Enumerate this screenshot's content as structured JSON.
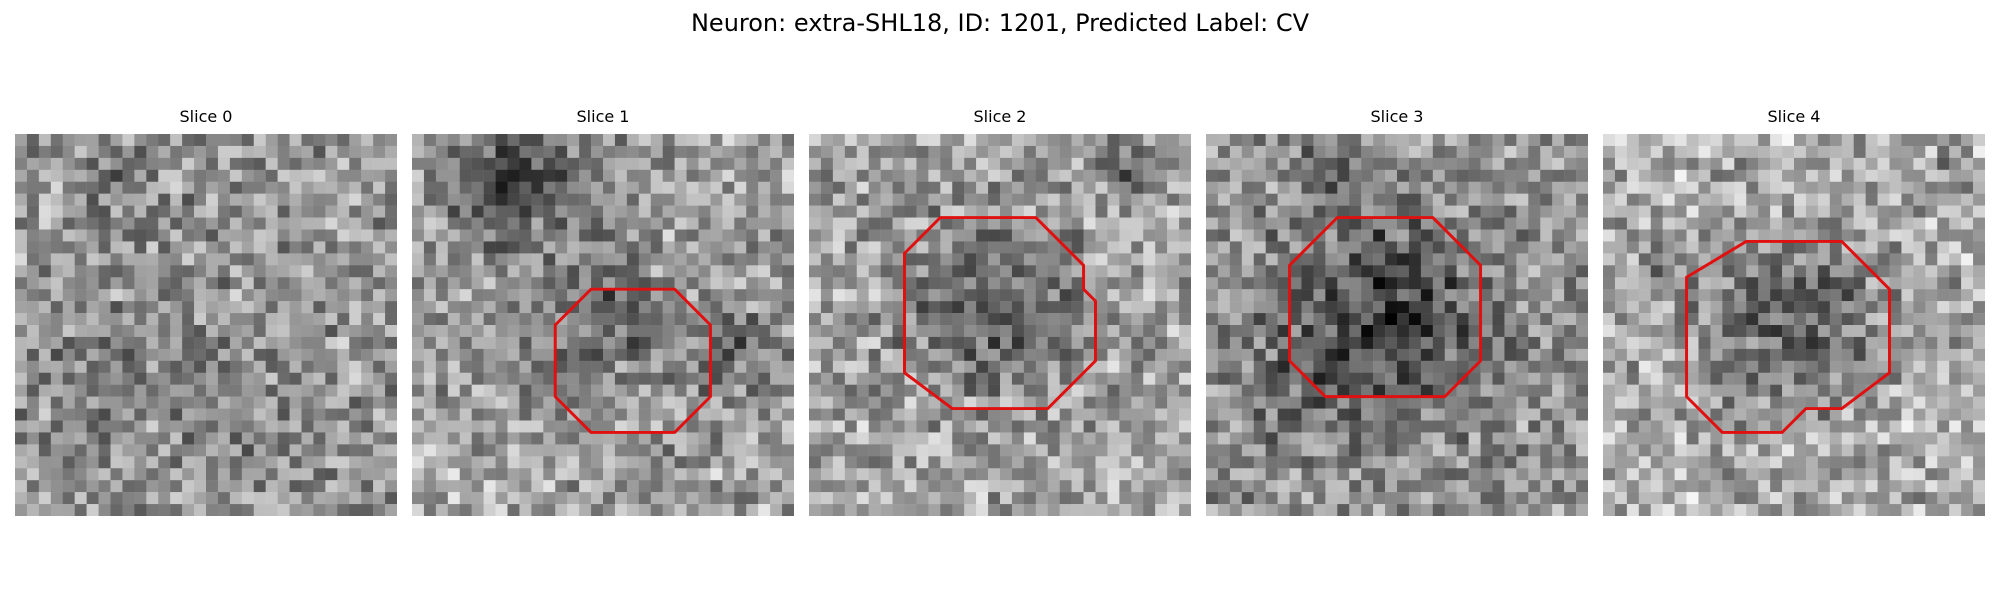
{
  "title": "Neuron: extra-SHL18, ID: 1201, Predicted Label: CV",
  "figure": {
    "grid": "32x32",
    "colormap": "gray",
    "contour_color": "#e01010",
    "slices": [
      {
        "label": "Slice 0",
        "has_roi": false
      },
      {
        "label": "Slice 1",
        "has_roi": true
      },
      {
        "label": "Slice 2",
        "has_roi": true
      },
      {
        "label": "Slice 3",
        "has_roi": true
      },
      {
        "label": "Slice 4",
        "has_roi": true
      }
    ]
  }
}
